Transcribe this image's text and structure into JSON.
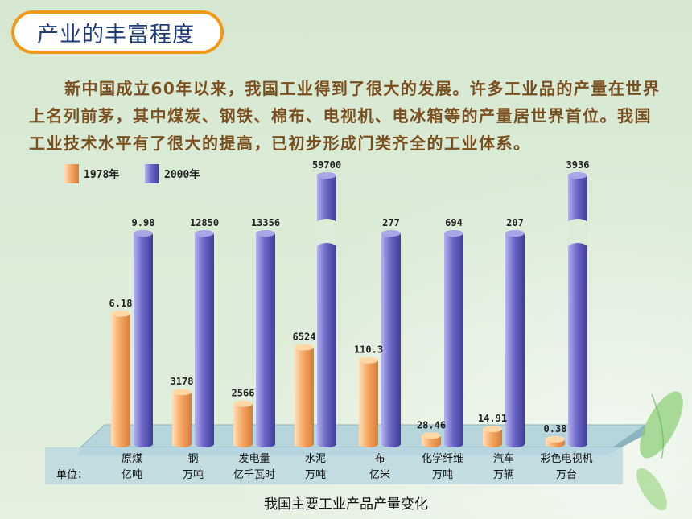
{
  "header": {
    "title": "产业的丰富程度"
  },
  "paragraph": "新中国成立60年以来，我国工业得到了很大的发展。许多工业品的产量在世界上名列前茅，其中煤炭、钢铁、棉布、电视机、电冰箱等的产量居世界首位。我国工业技术水平有了很大的提高，已初步形成门类齐全的工业体系。",
  "caption": "我国主要工业产品产量变化",
  "unit_prefix": "单位：",
  "colors": {
    "series_1978": "#f6a864",
    "series_2000": "#6b68c8",
    "title_border": "#f29a18",
    "paragraph_text": "#7a4f20"
  },
  "chart_data": {
    "type": "bar",
    "title": "我国主要工业产品产量变化",
    "categories": [
      "原煤",
      "钢",
      "发电量",
      "水泥",
      "布",
      "化学纤维",
      "汽车",
      "彩色电视机"
    ],
    "units": [
      "亿吨",
      "万吨",
      "亿千瓦时",
      "万吨",
      "亿米",
      "万吨",
      "万辆",
      "万台"
    ],
    "series": [
      {
        "name": "1978年",
        "values": [
          6.18,
          3178,
          2566,
          6524,
          110.3,
          28.46,
          14.91,
          0.38
        ],
        "labels": [
          "6.18",
          "3178",
          "2566",
          "6524",
          "110.3",
          "28.46",
          "14.91",
          "0.38"
        ]
      },
      {
        "name": "2000年",
        "values": [
          9.98,
          12850,
          13356,
          59700,
          277,
          694,
          207,
          3936
        ],
        "labels": [
          "9.98",
          "12850",
          "13356",
          "59700",
          "277",
          "694",
          "207",
          "3936"
        ]
      }
    ],
    "broken_axis_categories": [
      "水泥",
      "彩色电视机"
    ],
    "legend_position": "top-left",
    "grid": false
  }
}
